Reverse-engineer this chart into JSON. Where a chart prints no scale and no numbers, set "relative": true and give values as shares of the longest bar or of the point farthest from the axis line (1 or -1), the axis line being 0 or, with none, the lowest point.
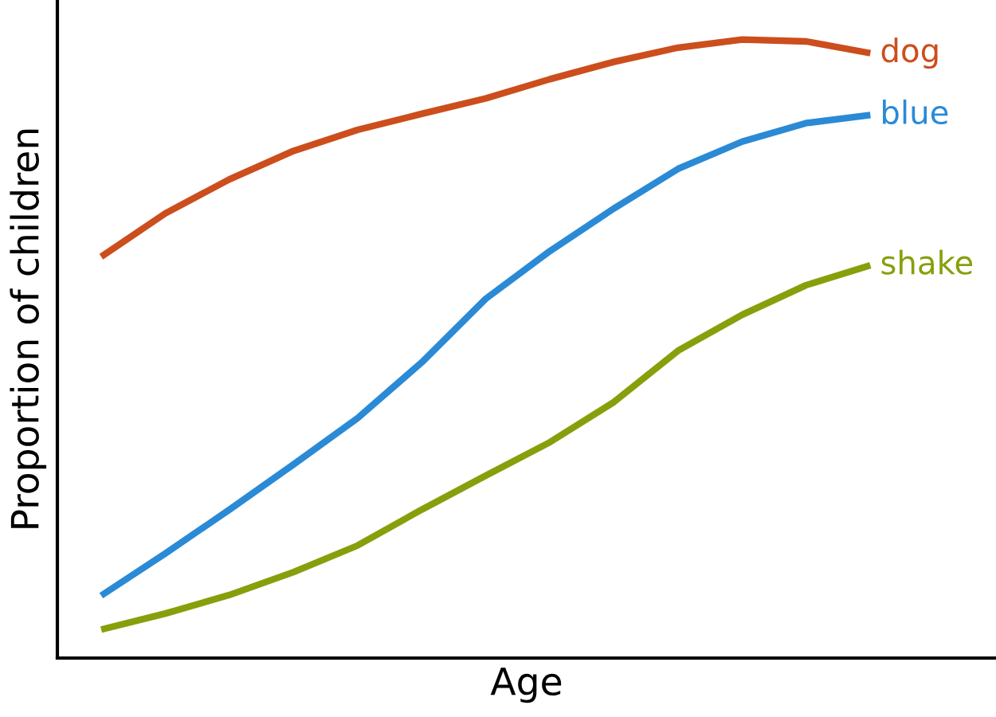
{
  "chart_data": {
    "type": "line",
    "relative": true,
    "xlabel": "Age",
    "ylabel": "Proportion of children",
    "categories": [
      null,
      null,
      null,
      null,
      null,
      null,
      null,
      null,
      null,
      null,
      null,
      null,
      null
    ],
    "legend": false,
    "grid": false,
    "marker": "none",
    "line_style": "solid",
    "series": [
      {
        "name": "dog",
        "color": "#cc4e1c",
        "values": [
          0.649,
          0.719,
          0.774,
          0.82,
          0.854,
          0.88,
          0.905,
          0.936,
          0.964,
          0.987,
          1.0,
          0.997,
          0.978
        ]
      },
      {
        "name": "blue",
        "color": "#2a8ad6",
        "values": [
          0.101,
          0.169,
          0.24,
          0.313,
          0.388,
          0.478,
          0.581,
          0.658,
          0.727,
          0.791,
          0.835,
          0.865,
          0.878
        ]
      },
      {
        "name": "shake",
        "color": "#86a00c",
        "values": [
          0.046,
          0.072,
          0.102,
          0.139,
          0.182,
          0.24,
          0.295,
          0.349,
          0.414,
          0.497,
          0.555,
          0.603,
          0.635
        ]
      }
    ]
  }
}
